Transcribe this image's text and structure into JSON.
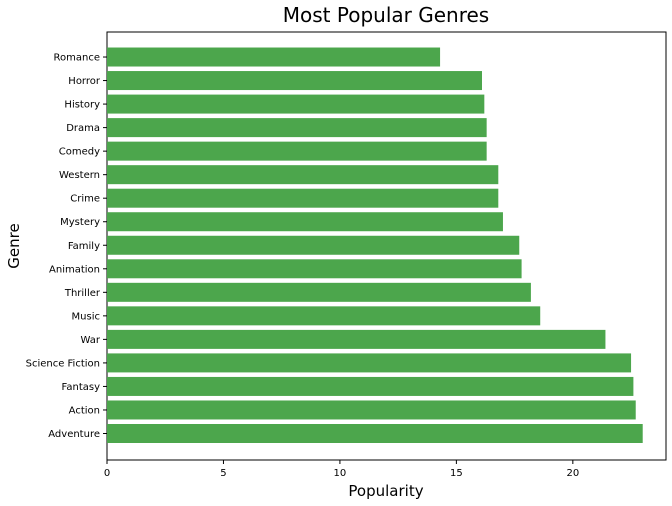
{
  "chart_data": {
    "type": "bar",
    "orientation": "horizontal",
    "title": "Most Popular Genres",
    "xlabel": "Popularity",
    "ylabel": "Genre",
    "xlim": [
      0,
      24
    ],
    "xticks": [
      0,
      5,
      10,
      15,
      20
    ],
    "grid": false,
    "bar_color": "#4ca64c",
    "categories": [
      "Adventure",
      "Action",
      "Fantasy",
      "Science Fiction",
      "War",
      "Music",
      "Thriller",
      "Animation",
      "Family",
      "Mystery",
      "Crime",
      "Western",
      "Comedy",
      "Drama",
      "History",
      "Horror",
      "Romance"
    ],
    "values": [
      23.0,
      22.7,
      22.6,
      22.5,
      21.4,
      18.6,
      18.2,
      17.8,
      17.7,
      17.0,
      16.8,
      16.8,
      16.3,
      16.3,
      16.2,
      16.1,
      14.3
    ]
  }
}
